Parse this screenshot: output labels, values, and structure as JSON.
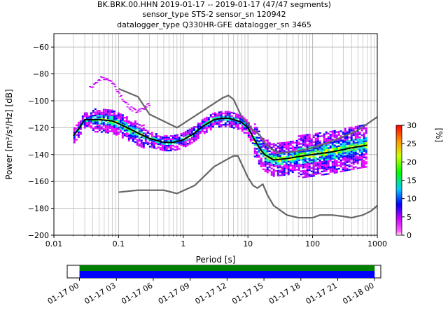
{
  "chart_data": [
    {
      "type": "heatmap",
      "title_lines": [
        "BK.BRK.00.HHN   2019-01-17 -- 2019-01-17  (47/47 segments)",
        "sensor_type STS-2 sensor_sn 120942",
        "datalogger_type Q330HR-GFE datalogger_sn 3465"
      ],
      "xlabel": "Period [s]",
      "ylabel": "Power [m²/s⁴/Hz] [dB]",
      "x_scale": "log",
      "xlim": [
        0.01,
        1000
      ],
      "ylim": [
        -200,
        -50
      ],
      "x_ticks": [
        {
          "v": 0.01,
          "label": "0.01"
        },
        {
          "v": 0.1,
          "label": "0.1"
        },
        {
          "v": 1,
          "label": "1"
        },
        {
          "v": 10,
          "label": "10"
        },
        {
          "v": 100,
          "label": "100"
        },
        {
          "v": 1000,
          "label": "1000"
        }
      ],
      "y_ticks": [
        -200,
        -180,
        -160,
        -140,
        -120,
        -100,
        -80,
        -60
      ],
      "y_tick_labels": [
        "−200",
        "−180",
        "−160",
        "−140",
        "−120",
        "−100",
        "−80",
        "−60"
      ],
      "grid": true,
      "colorbar": {
        "label": "[%]",
        "ticks": [
          0,
          5,
          10,
          15,
          20,
          25,
          30
        ],
        "range": [
          0,
          30
        ],
        "colors": [
          "#ffffff",
          "#ff00ff",
          "#0000ff",
          "#00ffff",
          "#00ff00",
          "#ffff00",
          "#ff8000",
          "#ff0000"
        ]
      },
      "series": [
        {
          "role": "mode",
          "color": "#000000",
          "points": [
            [
              0.02,
              -126
            ],
            [
              0.025,
              -120
            ],
            [
              0.03,
              -114
            ],
            [
              0.05,
              -114
            ],
            [
              0.08,
              -115
            ],
            [
              0.1,
              -117
            ],
            [
              0.15,
              -121
            ],
            [
              0.2,
              -124
            ],
            [
              0.3,
              -128
            ],
            [
              0.5,
              -131
            ],
            [
              0.7,
              -131
            ],
            [
              1,
              -129
            ],
            [
              1.5,
              -124
            ],
            [
              2,
              -119
            ],
            [
              3,
              -114
            ],
            [
              4,
              -113
            ],
            [
              5,
              -113
            ],
            [
              6,
              -114
            ],
            [
              8,
              -116
            ],
            [
              10,
              -120
            ],
            [
              12,
              -127
            ],
            [
              15,
              -135
            ],
            [
              18,
              -140
            ],
            [
              25,
              -144
            ],
            [
              40,
              -143
            ],
            [
              70,
              -141
            ],
            [
              100,
              -140
            ],
            [
              200,
              -138
            ],
            [
              400,
              -135
            ],
            [
              700,
              -133
            ]
          ]
        },
        {
          "role": "noise-model-high",
          "color": "#666666",
          "points": [
            [
              0.1,
              -91
            ],
            [
              0.2,
              -97
            ],
            [
              0.3,
              -110
            ],
            [
              0.8,
              -120
            ],
            [
              4,
              -98
            ],
            [
              5,
              -96
            ],
            [
              6,
              -99
            ],
            [
              8,
              -112
            ],
            [
              12,
              -122
            ],
            [
              15,
              -125
            ],
            [
              20,
              -134
            ],
            [
              30,
              -139
            ],
            [
              50,
              -138
            ],
            [
              100,
              -135
            ],
            [
              200,
              -130
            ],
            [
              500,
              -122
            ],
            [
              1000,
              -112
            ]
          ]
        },
        {
          "role": "noise-model-low",
          "color": "#666666",
          "points": [
            [
              0.1,
              -168
            ],
            [
              0.2,
              -166.5
            ],
            [
              0.5,
              -166.5
            ],
            [
              0.8,
              -169
            ],
            [
              1.5,
              -163
            ],
            [
              3,
              -149
            ],
            [
              5,
              -143
            ],
            [
              6,
              -141
            ],
            [
              7,
              -141
            ],
            [
              8,
              -147
            ],
            [
              10,
              -157
            ],
            [
              12,
              -163
            ],
            [
              14,
              -165
            ],
            [
              17,
              -162
            ],
            [
              20,
              -170
            ],
            [
              25,
              -178
            ],
            [
              40,
              -185
            ],
            [
              60,
              -187
            ],
            [
              100,
              -187
            ],
            [
              130,
              -185
            ],
            [
              200,
              -185
            ],
            [
              300,
              -186
            ],
            [
              400,
              -187
            ],
            [
              600,
              -185
            ],
            [
              800,
              -182
            ],
            [
              1000,
              -178
            ]
          ]
        }
      ]
    },
    {
      "type": "bar",
      "orientation": "horizontal",
      "name": "segment coverage",
      "tick_labels": [
        "01-17 00",
        "01-17 03",
        "01-17 06",
        "01-17 09",
        "01-17 12",
        "01-17 15",
        "01-17 18",
        "01-17 21",
        "01-18 00"
      ],
      "coverage_hours": [
        0,
        24
      ],
      "total_hours_range": [
        -1,
        24.5
      ],
      "colors": {
        "top": "#008000",
        "bottom": "#0000ff"
      }
    }
  ]
}
